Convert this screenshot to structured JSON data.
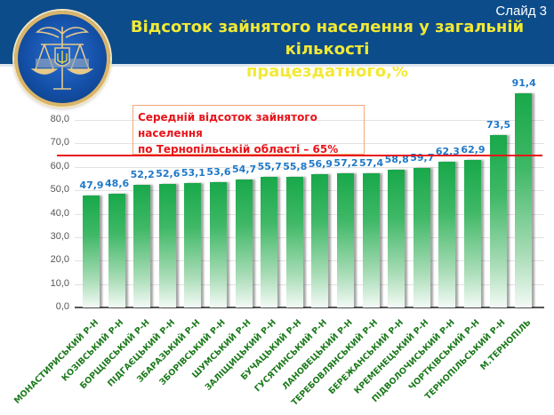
{
  "slide": {
    "number_label": "Слайд 3",
    "title_line1": "Відсоток зайнятого населення у загальній кількості",
    "title_line2": "працездатного,%",
    "logo": "emblem-scales-trident-icon"
  },
  "annotation": {
    "line1": "Середній відсоток зайнятого населення",
    "line2": "по Тернопільській області – 65%"
  },
  "colors": {
    "header_bg": "#0d4c8a",
    "title": "#f3e934",
    "bar": "#18a84a",
    "value_label": "#1f78c8",
    "category_label": "#1c7a1c",
    "average_line": "#e8141a"
  },
  "chart_data": {
    "type": "bar",
    "title": "Відсоток зайнятого населення у загальній кількості працездатного,%",
    "xlabel": "",
    "ylabel": "",
    "ylim": [
      0,
      80
    ],
    "yticks": [
      "0,0",
      "10,0",
      "20,0",
      "30,0",
      "40,0",
      "50,0",
      "60,0",
      "70,0",
      "80,0"
    ],
    "grid": true,
    "reference_line": {
      "value": 65,
      "label": "Середній відсоток зайнятого населення по Тернопільській області – 65%"
    },
    "categories": [
      "МОНАСТИРИСЬКИЙ Р-Н",
      "КОЗІВСЬКИЙ Р-Н",
      "БОРЩІВСЬКИЙ Р-Н",
      "ПІДГАЄЦЬКИЙ Р-Н",
      "ЗБАРАЗЬКИЙ Р-Н",
      "ЗБОРІВСЬКИЙ Р-Н",
      "ШУМСЬКИЙ Р-Н",
      "ЗАЛІЩИЦЬКИЙ Р-Н",
      "БУЧАЦЬКИЙ Р-Н",
      "ГУСЯТИНСЬКИЙ Р-Н",
      "ЛАНОВЕЦЬКИЙ Р-Н",
      "ТЕРЕБОВЛЯНСЬКИЙ Р-Н",
      "БЕРЕЖАНСЬКИЙ Р-Н",
      "КРЕМЕНЕЦЬКИЙ Р-Н",
      "ПІДВОЛОЧИСЬКИЙ Р-Н",
      "ЧОРТКІВСЬКИЙ Р-Н",
      "ТЕРНОПІЛЬСЬКИЙ Р-Н",
      "М.ТЕРНОПІЛЬ"
    ],
    "values": [
      47.9,
      48.6,
      52.2,
      52.6,
      53.1,
      53.6,
      54.7,
      55.7,
      55.8,
      56.9,
      57.2,
      57.4,
      58.8,
      59.7,
      62.3,
      62.9,
      73.5,
      91.4
    ],
    "value_labels": [
      "47,9",
      "48,6",
      "52,2",
      "52,6",
      "53,1",
      "53,6",
      "54,7",
      "55,7",
      "55,8",
      "56,9",
      "57,2",
      "57,4",
      "58,8",
      "59,7",
      "62,3",
      "62,9",
      "73,5",
      "91,4"
    ]
  }
}
